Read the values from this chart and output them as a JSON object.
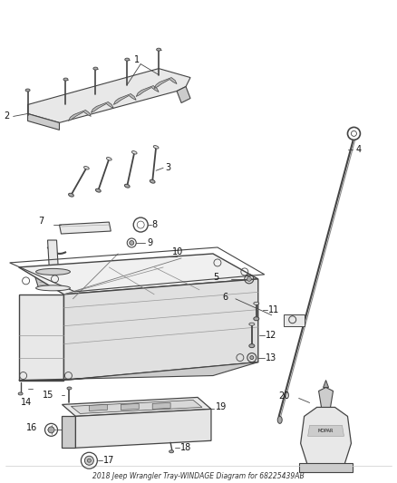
{
  "title": "2018 Jeep Wrangler Tray-WINDAGE Diagram for 68225439AB",
  "background_color": "#ffffff",
  "fig_width": 4.38,
  "fig_height": 5.33,
  "dpi": 100,
  "label_color": "#111111",
  "line_color": "#444444",
  "fill_light": "#e8e8e8",
  "fill_mid": "#cccccc",
  "fill_dark": "#aaaaaa"
}
